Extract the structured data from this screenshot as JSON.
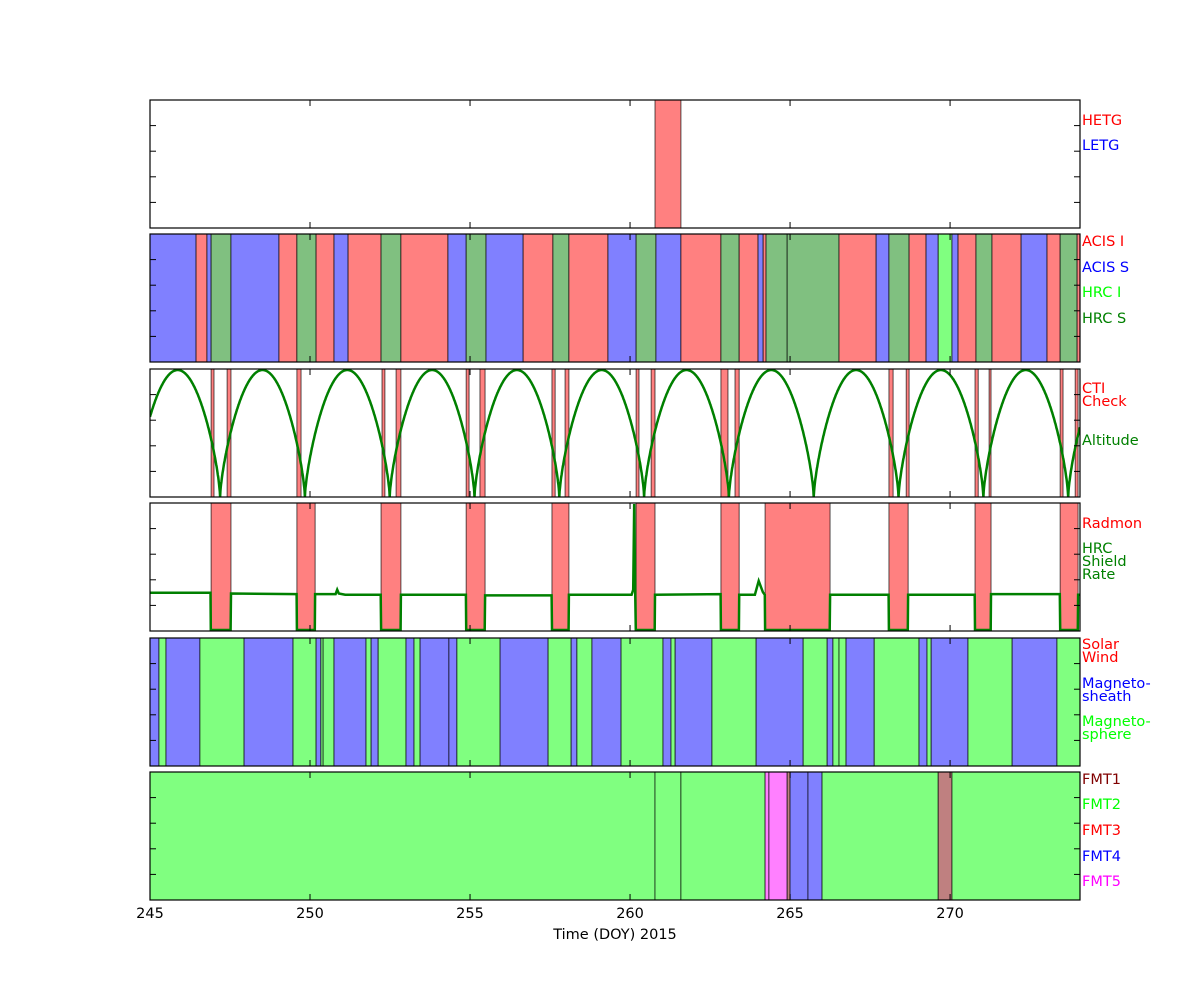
{
  "chart_data": {
    "type": "timeline",
    "title": "",
    "xlabel": "Time (DOY) 2015",
    "xlim": [
      245,
      274.06
    ],
    "xticks": [
      245,
      250,
      255,
      260,
      265,
      270
    ],
    "xtick_labels": [
      "245",
      "250",
      "255",
      "260",
      "265",
      "270"
    ],
    "panels": [
      {
        "name": "grating",
        "labels": [
          {
            "text": "HETG",
            "color": "#ff0000"
          },
          {
            "text": "LETG",
            "color": "#0000ff"
          }
        ],
        "fills": {
          "HETG": "#ff8080",
          "LETG": "#8080ff"
        },
        "segments": [
          [
            260.78,
            261.59,
            "HETG"
          ]
        ]
      },
      {
        "name": "instrument",
        "labels": [
          {
            "text": "ACIS I",
            "color": "#ff0000"
          },
          {
            "text": "ACIS S",
            "color": "#0000ff"
          },
          {
            "text": "HRC I",
            "color": "#00ff00"
          },
          {
            "text": "HRC S",
            "color": "#008000"
          }
        ],
        "fills": {
          "ACIS I": "#ff8080",
          "ACIS S": "#8080ff",
          "HRC I": "#80ff80",
          "HRC S": "#80c080"
        },
        "segments": [
          [
            245,
            246.44,
            "ACIS S"
          ],
          [
            246.44,
            246.78,
            "ACIS I"
          ],
          [
            246.78,
            246.91,
            "ACIS S"
          ],
          [
            246.91,
            247.53,
            "HRC S"
          ],
          [
            247.53,
            249.03,
            "ACIS S"
          ],
          [
            249.03,
            249.59,
            "ACIS I"
          ],
          [
            249.59,
            250.19,
            "HRC S"
          ],
          [
            250.19,
            250.75,
            "ACIS I"
          ],
          [
            250.75,
            251.19,
            "ACIS S"
          ],
          [
            251.19,
            252.22,
            "ACIS I"
          ],
          [
            252.22,
            252.84,
            "HRC S"
          ],
          [
            252.84,
            254.31,
            "ACIS I"
          ],
          [
            254.31,
            254.88,
            "ACIS S"
          ],
          [
            254.88,
            255.5,
            "HRC S"
          ],
          [
            255.5,
            256.66,
            "ACIS S"
          ],
          [
            256.66,
            257.59,
            "ACIS I"
          ],
          [
            257.59,
            258.09,
            "HRC S"
          ],
          [
            258.09,
            259.31,
            "ACIS I"
          ],
          [
            259.31,
            260.19,
            "ACIS S"
          ],
          [
            260.19,
            260.81,
            "HRC S"
          ],
          [
            260.81,
            261.59,
            "ACIS S"
          ],
          [
            261.59,
            262.84,
            "ACIS I"
          ],
          [
            262.84,
            263.41,
            "HRC S"
          ],
          [
            263.41,
            264.0,
            "ACIS I"
          ],
          [
            264.0,
            264.16,
            "ACIS S"
          ],
          [
            264.16,
            264.25,
            "ACIS I"
          ],
          [
            264.25,
            264.91,
            "HRC S"
          ],
          [
            264.91,
            266.53,
            "HRC S"
          ],
          [
            266.53,
            267.69,
            "ACIS I"
          ],
          [
            267.69,
            268.09,
            "ACIS S"
          ],
          [
            268.09,
            268.72,
            "HRC S"
          ],
          [
            268.72,
            269.25,
            "ACIS I"
          ],
          [
            269.25,
            269.63,
            "ACIS S"
          ],
          [
            269.63,
            270.06,
            "HRC I"
          ],
          [
            270.06,
            270.25,
            "ACIS S"
          ],
          [
            270.25,
            270.81,
            "ACIS I"
          ],
          [
            270.81,
            271.31,
            "HRC S"
          ],
          [
            271.31,
            272.22,
            "ACIS I"
          ],
          [
            272.22,
            273.03,
            "ACIS S"
          ],
          [
            273.03,
            273.44,
            "ACIS I"
          ],
          [
            273.44,
            273.97,
            "HRC S"
          ],
          [
            273.97,
            274.06,
            "ACIS I"
          ]
        ]
      },
      {
        "name": "cti-altitude",
        "labels": [
          {
            "text": "CTI",
            "color": "#ff0000"
          },
          {
            "text": "Check",
            "color": "#ff0000"
          },
          {
            "text": "Altitude",
            "color": "#008000"
          }
        ],
        "fills": {
          "CTI Check": "#ff8080"
        },
        "segments": [
          [
            246.91,
            247.0,
            "CTI Check"
          ],
          [
            247.41,
            247.53,
            "CTI Check"
          ],
          [
            249.59,
            249.72,
            "CTI Check"
          ],
          [
            252.25,
            252.34,
            "CTI Check"
          ],
          [
            252.69,
            252.84,
            "CTI Check"
          ],
          [
            254.88,
            254.97,
            "CTI Check"
          ],
          [
            255.31,
            255.47,
            "CTI Check"
          ],
          [
            257.56,
            257.66,
            "CTI Check"
          ],
          [
            257.97,
            258.09,
            "CTI Check"
          ],
          [
            260.19,
            260.28,
            "CTI Check"
          ],
          [
            260.66,
            260.78,
            "CTI Check"
          ],
          [
            262.84,
            263.06,
            "CTI Check"
          ],
          [
            263.28,
            263.41,
            "CTI Check"
          ],
          [
            268.09,
            268.22,
            "CTI Check"
          ],
          [
            268.63,
            268.72,
            "CTI Check"
          ],
          [
            270.78,
            270.88,
            "CTI Check"
          ],
          [
            271.22,
            271.28,
            "CTI Check"
          ],
          [
            273.44,
            273.53,
            "CTI Check"
          ],
          [
            273.91,
            274.0,
            "CTI Check"
          ]
        ],
        "altitude": {
          "color": "#008000",
          "perigee_doy": 247.19,
          "period_days": 2.65
        }
      },
      {
        "name": "radmon-hrc-rate",
        "labels": [
          {
            "text": "Radmon",
            "color": "#ff0000"
          },
          {
            "text": "HRC",
            "color": "#008000"
          },
          {
            "text": "Shield",
            "color": "#008000"
          },
          {
            "text": "Rate",
            "color": "#008000"
          }
        ],
        "fills": {
          "Radmon": "#ff8080"
        },
        "segments": [
          [
            246.91,
            247.53,
            "Radmon"
          ],
          [
            249.59,
            250.16,
            "Radmon"
          ],
          [
            252.22,
            252.84,
            "Radmon"
          ],
          [
            254.88,
            255.47,
            "Radmon"
          ],
          [
            257.56,
            258.09,
            "Radmon"
          ],
          [
            260.19,
            260.78,
            "Radmon"
          ],
          [
            262.84,
            263.41,
            "Radmon"
          ],
          [
            264.22,
            266.25,
            "Radmon"
          ],
          [
            268.09,
            268.69,
            "Radmon"
          ],
          [
            270.78,
            271.28,
            "Radmon"
          ],
          [
            273.44,
            274.0,
            "Radmon"
          ]
        ],
        "hrc_rate": {
          "color": "#008000",
          "points": [
            [
              245,
              0.295
            ],
            [
              246.89,
              0.295
            ],
            [
              246.9,
              0
            ],
            [
              247.52,
              0
            ],
            [
              247.53,
              0.29
            ],
            [
              249.58,
              0.285
            ],
            [
              249.59,
              0
            ],
            [
              250.15,
              0
            ],
            [
              250.16,
              0.285
            ],
            [
              250.8,
              0.285
            ],
            [
              250.85,
              0.32
            ],
            [
              250.9,
              0.29
            ],
            [
              251.1,
              0.28
            ],
            [
              252.21,
              0.28
            ],
            [
              252.22,
              0
            ],
            [
              252.83,
              0
            ],
            [
              252.84,
              0.28
            ],
            [
              254.87,
              0.28
            ],
            [
              254.88,
              0
            ],
            [
              255.46,
              0
            ],
            [
              255.47,
              0.275
            ],
            [
              257.55,
              0.275
            ],
            [
              257.56,
              0
            ],
            [
              258.08,
              0
            ],
            [
              258.09,
              0.28
            ],
            [
              260.05,
              0.28
            ],
            [
              260.1,
              0.32
            ],
            [
              260.13,
              1.0
            ],
            [
              260.16,
              0.3
            ],
            [
              260.18,
              0
            ],
            [
              260.77,
              0
            ],
            [
              260.78,
              0.28
            ],
            [
              262.83,
              0.285
            ],
            [
              262.84,
              0
            ],
            [
              263.4,
              0
            ],
            [
              263.41,
              0.28
            ],
            [
              263.9,
              0.28
            ],
            [
              264.02,
              0.39
            ],
            [
              264.15,
              0.3
            ],
            [
              264.21,
              0.28
            ],
            [
              264.22,
              0
            ],
            [
              266.24,
              0
            ],
            [
              266.25,
              0.28
            ],
            [
              268.08,
              0.28
            ],
            [
              268.09,
              0
            ],
            [
              268.68,
              0
            ],
            [
              268.69,
              0.28
            ],
            [
              270.77,
              0.28
            ],
            [
              270.78,
              0
            ],
            [
              271.27,
              0
            ],
            [
              271.28,
              0.285
            ],
            [
              273.43,
              0.285
            ],
            [
              273.44,
              0
            ],
            [
              273.99,
              0
            ],
            [
              274.0,
              0.28
            ],
            [
              274.06,
              0.28
            ]
          ]
        }
      },
      {
        "name": "orbit-region",
        "labels": [
          {
            "text": "Solar",
            "color": "#ff0000"
          },
          {
            "text": "Wind",
            "color": "#ff0000"
          },
          {
            "text": "Magneto-",
            "color": "#0000ff"
          },
          {
            "text": "sheath",
            "color": "#0000ff"
          },
          {
            "text": "Magneto-",
            "color": "#00ff00"
          },
          {
            "text": "sphere",
            "color": "#00ff00"
          }
        ],
        "fills": {
          "Solar Wind": "#ff8080",
          "Magnetosheath": "#8080ff",
          "Magnetosphere": "#80ff80"
        },
        "segments": [
          [
            245,
            245.28,
            "Magnetosheath"
          ],
          [
            245.28,
            245.5,
            "Magnetosphere"
          ],
          [
            245.5,
            246.56,
            "Magnetosheath"
          ],
          [
            246.56,
            247.94,
            "Magnetosphere"
          ],
          [
            247.94,
            249.47,
            "Magnetosheath"
          ],
          [
            249.47,
            250.19,
            "Magnetosphere"
          ],
          [
            250.19,
            250.34,
            "Magnetosheath"
          ],
          [
            250.34,
            250.41,
            "Magnetosphere"
          ],
          [
            250.41,
            250.75,
            "Magnetosphere"
          ],
          [
            250.75,
            251.75,
            "Magnetosheath"
          ],
          [
            251.75,
            251.91,
            "Magnetosphere"
          ],
          [
            251.91,
            252.13,
            "Magnetosheath"
          ],
          [
            252.13,
            253.0,
            "Magnetosphere"
          ],
          [
            253.0,
            253.25,
            "Magnetosheath"
          ],
          [
            253.25,
            253.44,
            "Magnetosphere"
          ],
          [
            253.44,
            254.34,
            "Magnetosheath"
          ],
          [
            254.34,
            254.59,
            "Magnetosheath"
          ],
          [
            254.59,
            255.94,
            "Magnetosphere"
          ],
          [
            255.94,
            257.44,
            "Magnetosheath"
          ],
          [
            257.44,
            258.16,
            "Magnetosphere"
          ],
          [
            258.16,
            258.34,
            "Magnetosheath"
          ],
          [
            258.34,
            258.81,
            "Magnetosphere"
          ],
          [
            258.81,
            259.72,
            "Magnetosheath"
          ],
          [
            259.72,
            261.03,
            "Magnetosphere"
          ],
          [
            261.03,
            261.28,
            "Magnetosheath"
          ],
          [
            261.28,
            261.41,
            "Magnetosphere"
          ],
          [
            261.41,
            262.56,
            "Magnetosheath"
          ],
          [
            262.56,
            263.94,
            "Magnetosphere"
          ],
          [
            263.94,
            265.41,
            "Magnetosheath"
          ],
          [
            265.41,
            266.16,
            "Magnetosphere"
          ],
          [
            266.16,
            266.34,
            "Magnetosheath"
          ],
          [
            266.34,
            266.53,
            "Magnetosphere"
          ],
          [
            266.53,
            266.75,
            "Magnetosphere"
          ],
          [
            266.75,
            267.63,
            "Magnetosheath"
          ],
          [
            267.63,
            269.03,
            "Magnetosphere"
          ],
          [
            269.03,
            269.28,
            "Magnetosheath"
          ],
          [
            269.28,
            269.41,
            "Magnetosphere"
          ],
          [
            269.41,
            270.56,
            "Magnetosheath"
          ],
          [
            270.56,
            271.94,
            "Magnetosphere"
          ],
          [
            271.94,
            273.34,
            "Magnetosheath"
          ],
          [
            273.34,
            274.06,
            "Magnetosphere"
          ]
        ]
      },
      {
        "name": "telemetry-format",
        "labels": [
          {
            "text": "FMT1",
            "color": "#800000"
          },
          {
            "text": "FMT2",
            "color": "#00ff00"
          },
          {
            "text": "FMT3",
            "color": "#ff0000"
          },
          {
            "text": "FMT4",
            "color": "#0000ff"
          },
          {
            "text": "FMT5",
            "color": "#ff00ff"
          }
        ],
        "fills": {
          "FMT1": "#bf8080",
          "FMT2": "#80ff80",
          "FMT3": "#ff8080",
          "FMT4": "#8080ff",
          "FMT5": "#ff80ff"
        },
        "segments": [
          [
            245,
            260.78,
            "FMT2"
          ],
          [
            260.78,
            261.59,
            "FMT2"
          ],
          [
            261.59,
            264.22,
            "FMT2"
          ],
          [
            264.22,
            264.34,
            "FMT5"
          ],
          [
            264.34,
            264.91,
            "FMT5"
          ],
          [
            264.91,
            265.0,
            "FMT1"
          ],
          [
            265.0,
            265.56,
            "FMT4"
          ],
          [
            265.56,
            266.0,
            "FMT4"
          ],
          [
            266.0,
            269.63,
            "FMT2"
          ],
          [
            269.63,
            270.06,
            "FMT1"
          ],
          [
            270.06,
            274.06,
            "FMT2"
          ]
        ]
      }
    ]
  }
}
